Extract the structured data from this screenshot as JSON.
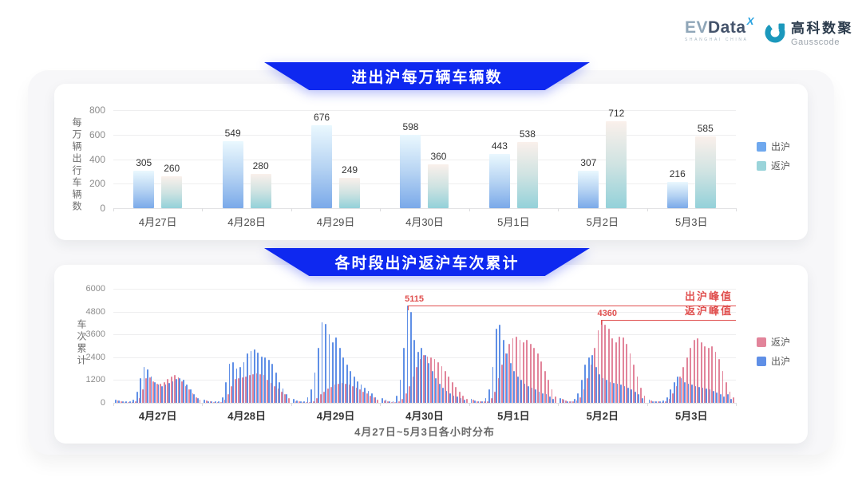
{
  "theme": {
    "banner_blue": "#0e28f0",
    "accent_red": "#e0504f",
    "bar_blue": "#5f8fe6",
    "bar_pink": "#e2849a"
  },
  "brand": {
    "evdata": {
      "ev": "EV",
      "rest": "Data",
      "sup": "X",
      "sub": "SHANGHAI CHINA"
    },
    "gausscode": {
      "cn": "高科数聚",
      "en": "Gausscode"
    }
  },
  "chart_data": [
    {
      "type": "bar",
      "title": "进出沪每万辆车辆数",
      "ylabel": "每万辆出行车辆数",
      "ylim": [
        0,
        800
      ],
      "yticks": [
        0,
        200,
        400,
        600,
        800
      ],
      "grid": true,
      "legend_position": "right",
      "categories": [
        "4月27日",
        "4月28日",
        "4月29日",
        "4月30日",
        "5月1日",
        "5月2日",
        "5月3日"
      ],
      "series": [
        {
          "name": "出沪",
          "legend_color": "#6fa8ee",
          "gradient": [
            "#eaf8fe",
            "#b7d4f3",
            "#7aa9e9"
          ],
          "values": [
            305,
            549,
            676,
            598,
            443,
            307,
            216
          ]
        },
        {
          "name": "返沪",
          "legend_color": "#9ad4da",
          "gradient": [
            "#faf0eb",
            "#cfe3e2",
            "#93d1d9"
          ],
          "values": [
            260,
            280,
            249,
            360,
            538,
            712,
            585
          ]
        }
      ]
    },
    {
      "type": "bar",
      "title": "各时段出沪返沪车次累计",
      "ylabel": "车次累计",
      "xlabel": "4月27日~5月3日各小时分布",
      "ylim": [
        0,
        6000
      ],
      "yticks": [
        0,
        1200,
        2400,
        3600,
        4800,
        6000
      ],
      "grid": true,
      "legend_position": "right",
      "legend_order": [
        "返沪",
        "出沪"
      ],
      "categories": [
        "4月27日",
        "4月28日",
        "4月29日",
        "4月30日",
        "5月1日",
        "5月2日",
        "5月3日"
      ],
      "hours_per_day": 24,
      "series": [
        {
          "name": "出沪",
          "color": "#5f8fe6",
          "values": [
            180,
            120,
            90,
            70,
            70,
            150,
            600,
            1300,
            1900,
            1750,
            1400,
            1100,
            950,
            900,
            950,
            1050,
            1150,
            1250,
            1300,
            1200,
            950,
            700,
            450,
            250,
            150,
            100,
            80,
            70,
            80,
            300,
            1100,
            2050,
            2150,
            1800,
            1900,
            2150,
            2600,
            2750,
            2800,
            2650,
            2450,
            2400,
            2250,
            2050,
            1600,
            1100,
            750,
            450,
            200,
            130,
            100,
            80,
            300,
            700,
            1600,
            2900,
            4250,
            4150,
            3600,
            3200,
            3450,
            2900,
            2400,
            2000,
            1700,
            1400,
            1150,
            950,
            800,
            650,
            500,
            300,
            250,
            150,
            100,
            100,
            400,
            1200,
            2900,
            5115,
            4800,
            3300,
            2700,
            2900,
            2500,
            2100,
            1700,
            1300,
            1000,
            800,
            650,
            500,
            400,
            350,
            250,
            150,
            200,
            120,
            90,
            80,
            250,
            700,
            1900,
            3900,
            4100,
            3300,
            2600,
            2100,
            1700,
            1400,
            1200,
            1000,
            900,
            800,
            700,
            600,
            500,
            450,
            350,
            200,
            250,
            150,
            100,
            90,
            200,
            500,
            1200,
            2000,
            2400,
            2500,
            1900,
            1500,
            1300,
            1200,
            1100,
            1050,
            1000,
            950,
            900,
            800,
            700,
            600,
            450,
            250,
            150,
            100,
            80,
            70,
            120,
            300,
            700,
            1100,
            1400,
            1300,
            1100,
            1000,
            950,
            900,
            850,
            800,
            750,
            700,
            650,
            550,
            450,
            350,
            450,
            200
          ]
        },
        {
          "name": "返沪",
          "color": "#e2849a",
          "values": [
            120,
            80,
            60,
            50,
            50,
            80,
            250,
            700,
            1300,
            1350,
            1150,
            1000,
            1000,
            1100,
            1250,
            1400,
            1450,
            1350,
            1150,
            900,
            700,
            500,
            300,
            150,
            120,
            80,
            60,
            60,
            60,
            150,
            450,
            900,
            1250,
            1300,
            1350,
            1400,
            1450,
            1500,
            1550,
            1500,
            1450,
            1200,
            1050,
            900,
            750,
            600,
            450,
            250,
            100,
            70,
            60,
            50,
            60,
            100,
            250,
            450,
            600,
            750,
            850,
            950,
            1000,
            1050,
            1000,
            950,
            900,
            800,
            700,
            600,
            500,
            400,
            300,
            150,
            120,
            80,
            60,
            60,
            80,
            200,
            500,
            900,
            1400,
            1900,
            2300,
            2500,
            2450,
            2400,
            2300,
            2150,
            1950,
            1700,
            1400,
            1100,
            850,
            600,
            400,
            200,
            150,
            100,
            80,
            70,
            100,
            250,
            600,
            1300,
            2000,
            2600,
            3100,
            3400,
            3500,
            3300,
            3200,
            3300,
            3100,
            2900,
            2600,
            2200,
            1700,
            1200,
            700,
            350,
            200,
            120,
            90,
            80,
            120,
            300,
            700,
            1300,
            2000,
            2900,
            3800,
            4360,
            4100,
            3900,
            3400,
            3200,
            3500,
            3450,
            3100,
            2600,
            2000,
            1400,
            800,
            400,
            120,
            90,
            70,
            60,
            80,
            200,
            500,
            900,
            1400,
            1900,
            2400,
            2900,
            3300,
            3400,
            3200,
            3000,
            2900,
            3000,
            2700,
            2300,
            1700,
            1100,
            600,
            300
          ]
        }
      ],
      "annotations": [
        {
          "value": 5115,
          "value_label": "5115",
          "line_label": "出沪峰值",
          "index": 79
        },
        {
          "value": 4360,
          "value_label": "4360",
          "line_label": "返沪峰值",
          "index": 131
        }
      ]
    }
  ]
}
